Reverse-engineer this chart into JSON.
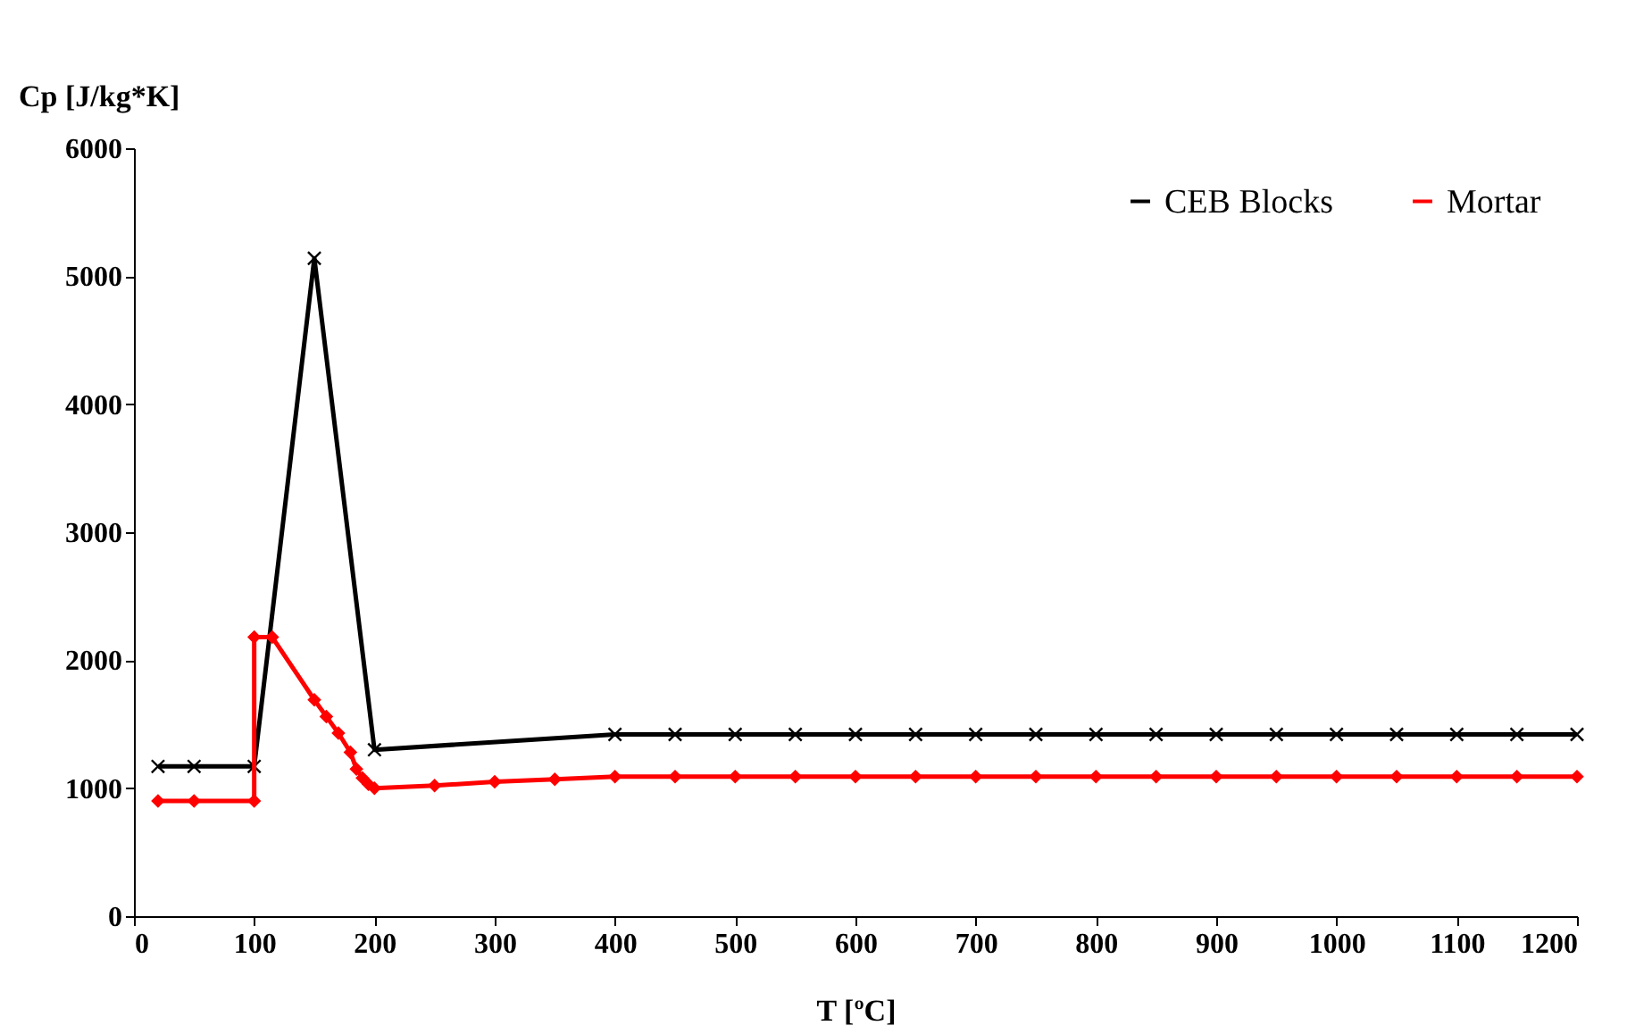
{
  "chart_data": {
    "type": "line",
    "xlabel": "T [ºC]",
    "ylabel": "Cp [J/kg*K]",
    "xlim": [
      0,
      1200
    ],
    "ylim": [
      0,
      6000
    ],
    "xticks": [
      0,
      100,
      200,
      300,
      400,
      500,
      600,
      700,
      800,
      900,
      1000,
      1100,
      1200
    ],
    "yticks": [
      0,
      1000,
      2000,
      3000,
      4000,
      5000,
      6000
    ],
    "grid": false,
    "legend": "top right",
    "line_style": "solid",
    "series": [
      {
        "name": "CEB Blocks",
        "color": "#000000",
        "marker": "cross",
        "x": [
          20,
          50,
          100,
          150,
          200,
          400,
          450,
          500,
          550,
          600,
          650,
          700,
          750,
          800,
          850,
          900,
          950,
          1000,
          1050,
          1100,
          1150,
          1200
        ],
        "values": [
          1170,
          1170,
          1170,
          5140,
          1300,
          1420,
          1420,
          1420,
          1420,
          1420,
          1420,
          1420,
          1420,
          1420,
          1420,
          1420,
          1420,
          1420,
          1420,
          1420,
          1420,
          1420
        ]
      },
      {
        "name": "Mortar",
        "color": "#ff0000",
        "marker": "diamond",
        "x": [
          20,
          50,
          100,
          100,
          115,
          150,
          160,
          170,
          180,
          185,
          190,
          195,
          200,
          250,
          300,
          350,
          400,
          450,
          500,
          550,
          600,
          650,
          700,
          750,
          800,
          850,
          900,
          950,
          1000,
          1050,
          1100,
          1150,
          1200
        ],
        "values": [
          900,
          900,
          900,
          2180,
          2180,
          1690,
          1560,
          1430,
          1280,
          1150,
          1080,
          1030,
          1000,
          1020,
          1050,
          1070,
          1090,
          1090,
          1090,
          1090,
          1090,
          1090,
          1090,
          1090,
          1090,
          1090,
          1090,
          1090,
          1090,
          1090,
          1090,
          1090,
          1090
        ]
      }
    ]
  }
}
